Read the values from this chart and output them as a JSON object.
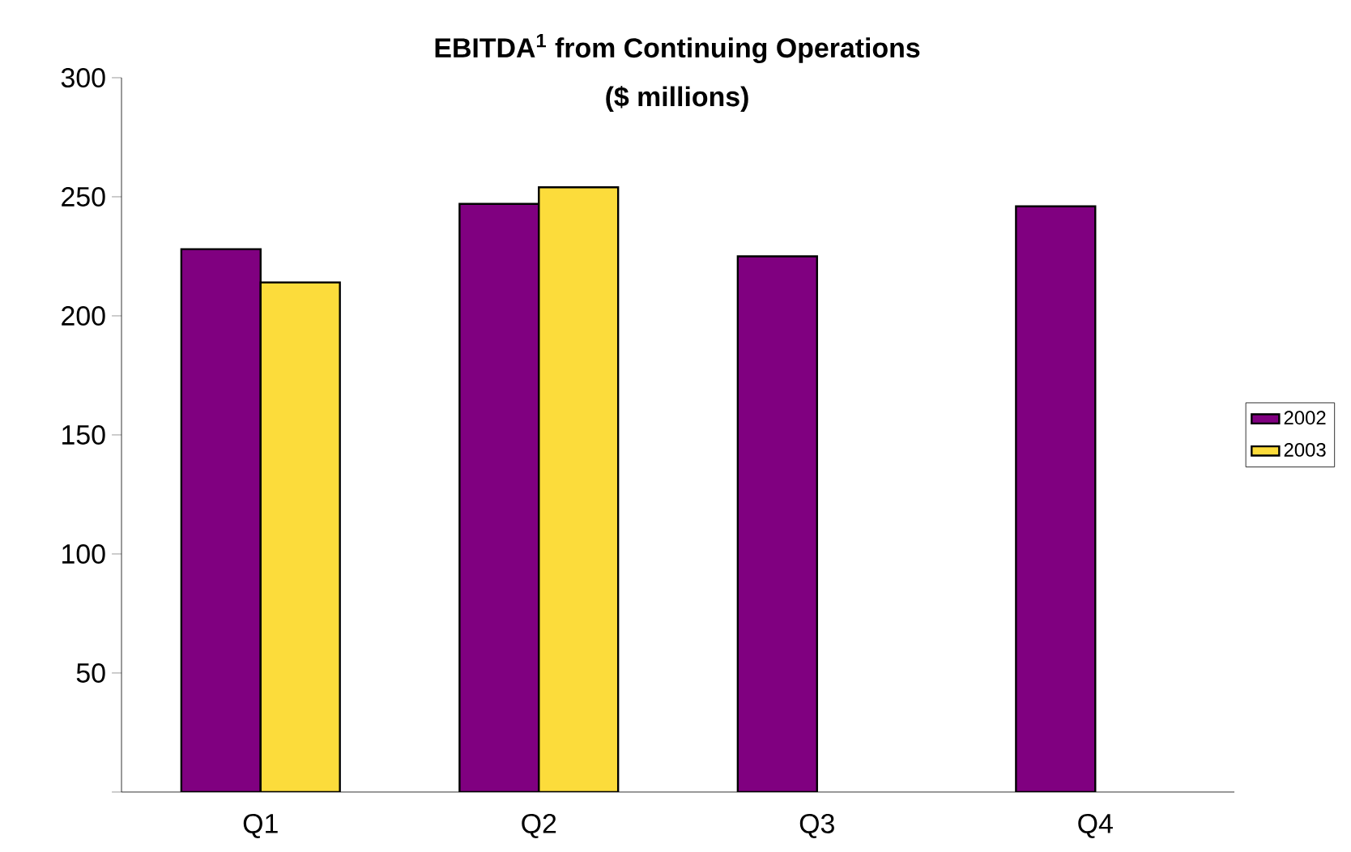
{
  "chart_data": {
    "type": "bar",
    "title": "EBITDA$^{1}$ from Continuing Operations",
    "subtitle": "($ millions)",
    "categories": [
      "Q1",
      "Q2",
      "Q3",
      "Q4"
    ],
    "series": [
      {
        "name": "2002",
        "color": "#800080",
        "values": [
          228,
          247,
          225,
          246
        ]
      },
      {
        "name": "2003",
        "color": "#fcdc3b",
        "values": [
          214,
          254,
          null,
          null
        ]
      }
    ],
    "ylim": [
      0,
      300
    ],
    "yticks": [
      {
        "value": 0,
        "label": null
      },
      50,
      100,
      150,
      200,
      250,
      300
    ],
    "legend": "right"
  }
}
